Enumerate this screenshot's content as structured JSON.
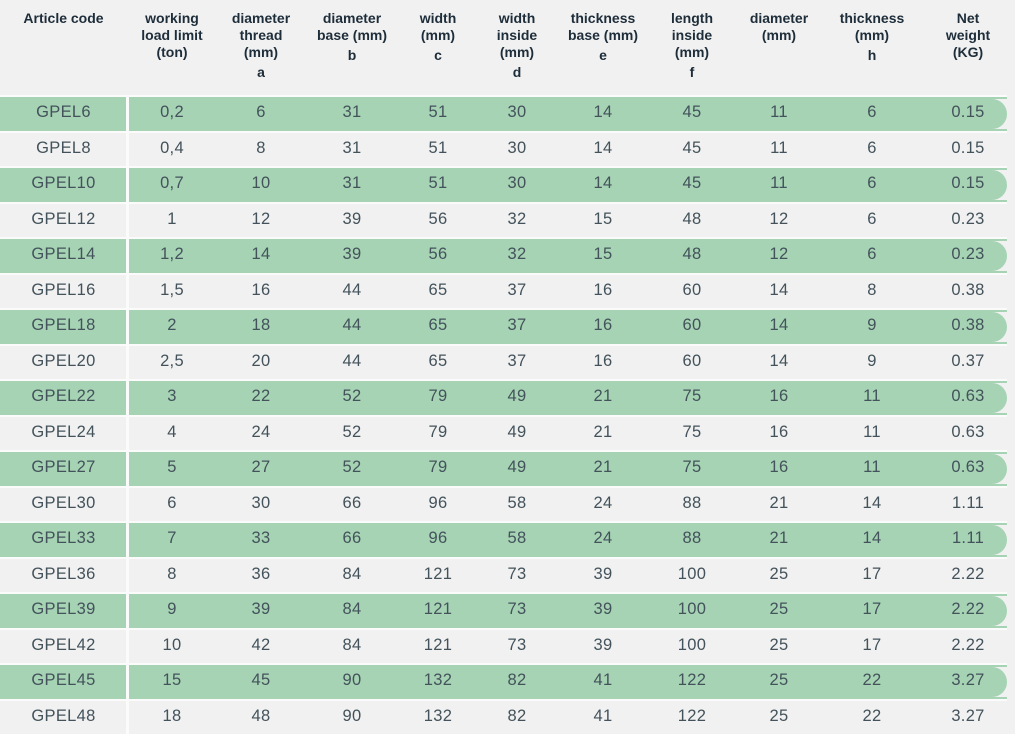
{
  "colors": {
    "green": "#a6d3b4",
    "bg": "#f0f1f0",
    "sep": "#fafbfa",
    "header-text": "#1e2d3a",
    "cell-text": "#43525b"
  },
  "chart_data": {
    "type": "table",
    "columns": [
      {
        "label": "Article code",
        "letter": ""
      },
      {
        "label": "working\nload limit\n(ton)",
        "letter": ""
      },
      {
        "label": "diameter\nthread\n(mm)",
        "letter": "a"
      },
      {
        "label": "diameter\nbase (mm)",
        "letter": "b"
      },
      {
        "label": "width\n(mm)",
        "letter": "c"
      },
      {
        "label": "width\ninside\n(mm)",
        "letter": "d"
      },
      {
        "label": "thickness\nbase (mm)",
        "letter": "e"
      },
      {
        "label": "length\ninside\n(mm)",
        "letter": "f"
      },
      {
        "label": "diameter\n(mm)",
        "letter": ""
      },
      {
        "label": "thickness\n(mm)",
        "letter": "h"
      },
      {
        "label": "Net\nweight\n(KG)",
        "letter": ""
      }
    ],
    "rows": [
      {
        "article_code": "GPEL6",
        "values": [
          "0,2",
          "6",
          "31",
          "51",
          "30",
          "14",
          "45",
          "11",
          "6",
          "0.15"
        ],
        "highlighted": true
      },
      {
        "article_code": "GPEL8",
        "values": [
          "0,4",
          "8",
          "31",
          "51",
          "30",
          "14",
          "45",
          "11",
          "6",
          "0.15"
        ],
        "highlighted": false
      },
      {
        "article_code": "GPEL10",
        "values": [
          "0,7",
          "10",
          "31",
          "51",
          "30",
          "14",
          "45",
          "11",
          "6",
          "0.15"
        ],
        "highlighted": true
      },
      {
        "article_code": "GPEL12",
        "values": [
          "1",
          "12",
          "39",
          "56",
          "32",
          "15",
          "48",
          "12",
          "6",
          "0.23"
        ],
        "highlighted": false
      },
      {
        "article_code": "GPEL14",
        "values": [
          "1,2",
          "14",
          "39",
          "56",
          "32",
          "15",
          "48",
          "12",
          "6",
          "0.23"
        ],
        "highlighted": true
      },
      {
        "article_code": "GPEL16",
        "values": [
          "1,5",
          "16",
          "44",
          "65",
          "37",
          "16",
          "60",
          "14",
          "8",
          "0.38"
        ],
        "highlighted": false
      },
      {
        "article_code": "GPEL18",
        "values": [
          "2",
          "18",
          "44",
          "65",
          "37",
          "16",
          "60",
          "14",
          "9",
          "0.38"
        ],
        "highlighted": true
      },
      {
        "article_code": "GPEL20",
        "values": [
          "2,5",
          "20",
          "44",
          "65",
          "37",
          "16",
          "60",
          "14",
          "9",
          "0.37"
        ],
        "highlighted": false
      },
      {
        "article_code": "GPEL22",
        "values": [
          "3",
          "22",
          "52",
          "79",
          "49",
          "21",
          "75",
          "16",
          "11",
          "0.63"
        ],
        "highlighted": true
      },
      {
        "article_code": "GPEL24",
        "values": [
          "4",
          "24",
          "52",
          "79",
          "49",
          "21",
          "75",
          "16",
          "11",
          "0.63"
        ],
        "highlighted": false
      },
      {
        "article_code": "GPEL27",
        "values": [
          "5",
          "27",
          "52",
          "79",
          "49",
          "21",
          "75",
          "16",
          "11",
          "0.63"
        ],
        "highlighted": true
      },
      {
        "article_code": "GPEL30",
        "values": [
          "6",
          "30",
          "66",
          "96",
          "58",
          "24",
          "88",
          "21",
          "14",
          "1.11"
        ],
        "highlighted": false
      },
      {
        "article_code": "GPEL33",
        "values": [
          "7",
          "33",
          "66",
          "96",
          "58",
          "24",
          "88",
          "21",
          "14",
          "1.11"
        ],
        "highlighted": true
      },
      {
        "article_code": "GPEL36",
        "values": [
          "8",
          "36",
          "84",
          "121",
          "73",
          "39",
          "100",
          "25",
          "17",
          "2.22"
        ],
        "highlighted": false
      },
      {
        "article_code": "GPEL39",
        "values": [
          "9",
          "39",
          "84",
          "121",
          "73",
          "39",
          "100",
          "25",
          "17",
          "2.22"
        ],
        "highlighted": true
      },
      {
        "article_code": "GPEL42",
        "values": [
          "10",
          "42",
          "84",
          "121",
          "73",
          "39",
          "100",
          "25",
          "17",
          "2.22"
        ],
        "highlighted": false
      },
      {
        "article_code": "GPEL45",
        "values": [
          "15",
          "45",
          "90",
          "132",
          "82",
          "41",
          "122",
          "25",
          "22",
          "3.27"
        ],
        "highlighted": true
      },
      {
        "article_code": "GPEL48",
        "values": [
          "18",
          "48",
          "90",
          "132",
          "82",
          "41",
          "122",
          "25",
          "22",
          "3.27"
        ],
        "highlighted": false
      }
    ]
  }
}
